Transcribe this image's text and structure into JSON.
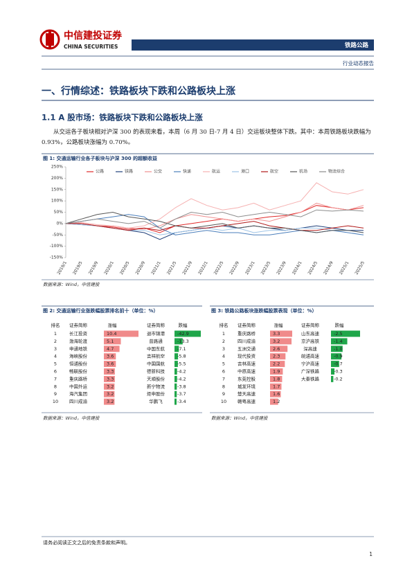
{
  "header": {
    "logo_cn": "中信建投证券",
    "logo_en": "CHINA SECURITIES",
    "tag": "铁路公路",
    "report_type": "行业动态报告"
  },
  "section_title": "一、行情综述：铁路板块下跌和公路板块上涨",
  "subsection_title": "1.1 A 股市场：铁路板块下跌和公路板块上涨",
  "paragraph": "从交运各子板块相对沪深 300 的表现来看，本周（6 月 30 日-7 月 4 日）交运板块整体下跌。其中：本周铁路板块跌幅为 0.93%，公路板块涨幅为 0.70%。",
  "figure1": {
    "title": "图 1: 交通运输行业各子板块与沪深 300 的超额收益",
    "source": "数据来源：Wind，中信建投"
  },
  "chart_data": {
    "type": "line",
    "grid": false,
    "x": [
      "2019/1",
      "2019/5",
      "2019/9",
      "2020/1",
      "2020/5",
      "2020/9",
      "2021/1",
      "2021/5",
      "2021/9",
      "2022/1",
      "2022/5",
      "2022/9",
      "2023/1",
      "2023/5",
      "2023/9",
      "2024/1",
      "2024/5",
      "2024/9",
      "2025/1",
      "2025/5"
    ],
    "ylim": [
      -150,
      250
    ],
    "yticks": [
      {
        "value": 250,
        "label": "250%"
      },
      {
        "value": 200,
        "label": "200%"
      },
      {
        "value": 150,
        "label": "150%"
      },
      {
        "value": 100,
        "label": "100%"
      },
      {
        "value": 50,
        "label": "50%"
      },
      {
        "value": 0,
        "label": "0%"
      },
      {
        "value": -50,
        "label": "-50%"
      },
      {
        "value": -100,
        "label": "-100%"
      },
      {
        "value": -150,
        "label": "-150%"
      }
    ],
    "series": [
      {
        "name": "公路",
        "color": "#e02828",
        "values": [
          0,
          0,
          -10,
          -15,
          -25,
          -20,
          -40,
          -10,
          0,
          10,
          20,
          10,
          20,
          30,
          35,
          50,
          80,
          70,
          60,
          70
        ]
      },
      {
        "name": "铁路",
        "color": "#1f3f7a",
        "values": [
          0,
          -5,
          -10,
          -20,
          -30,
          -40,
          -70,
          -40,
          -30,
          -20,
          -10,
          -20,
          -10,
          -20,
          -30,
          -20,
          -10,
          -20,
          -30,
          -30
        ]
      },
      {
        "name": "公交",
        "color": "#f08f8f",
        "values": [
          0,
          0,
          -10,
          -10,
          -20,
          -25,
          -10,
          20,
          40,
          30,
          20,
          10,
          20,
          10,
          30,
          50,
          90,
          70,
          60,
          80
        ]
      },
      {
        "name": "快递",
        "color": "#4a7ebb",
        "values": [
          0,
          10,
          20,
          30,
          40,
          30,
          -20,
          -50,
          -40,
          -30,
          -40,
          -40,
          -50,
          -50,
          -40,
          -30,
          -40,
          -30,
          -40,
          -50
        ]
      },
      {
        "name": "航运",
        "color": "#f6b0b0",
        "values": [
          0,
          5,
          -5,
          -10,
          -20,
          -10,
          20,
          70,
          110,
          80,
          60,
          70,
          90,
          60,
          80,
          100,
          180,
          140,
          130,
          150
        ]
      },
      {
        "name": "港口",
        "color": "#9dc3e6",
        "values": [
          0,
          -5,
          -10,
          -20,
          -30,
          -30,
          -50,
          -40,
          -30,
          -20,
          -30,
          -20,
          -40,
          -30,
          -30,
          -20,
          -20,
          -30,
          -30,
          -40
        ]
      },
      {
        "name": "航空",
        "color": "#b01818",
        "values": [
          0,
          0,
          -10,
          -20,
          -30,
          -20,
          -30,
          -10,
          -20,
          -20,
          -10,
          0,
          10,
          -10,
          -20,
          -30,
          -30,
          -20,
          -10,
          -20
        ]
      },
      {
        "name": "机场",
        "color": "#555555",
        "values": [
          0,
          20,
          40,
          50,
          30,
          20,
          10,
          -10,
          -20,
          -10,
          0,
          -20,
          -10,
          -20,
          -20,
          -30,
          -40,
          -30,
          -30,
          -40
        ]
      },
      {
        "name": "物流综合",
        "color": "#8c8c8c",
        "values": [
          0,
          10,
          20,
          10,
          0,
          10,
          -20,
          20,
          50,
          40,
          50,
          30,
          40,
          50,
          40,
          30,
          60,
          55,
          60,
          55
        ]
      }
    ]
  },
  "table2": {
    "title": "图 2: 交通运输行业涨跌幅股票排名前十（单位：%）",
    "header": [
      "排名",
      "证券简称",
      "涨幅",
      "证券简称",
      "跌幅"
    ],
    "rows": [
      [
        1,
        "长江投资",
        10.4,
        "退市锦港",
        -42.9
      ],
      [
        2,
        "渤海轮渡",
        5.1,
        "普路通",
        -13.3
      ],
      [
        3,
        "申通地铁",
        4.7,
        "中国东航",
        -7.1
      ],
      [
        4,
        "海峡股份",
        3.6,
        "吉祥航空",
        -5.8
      ],
      [
        5,
        "恒通股份",
        3.6,
        "中国国航",
        -5.5
      ],
      [
        6,
        "畅联股份",
        3.3,
        "德新科技",
        -4.2
      ],
      [
        7,
        "重庆路桥",
        3.3,
        "天顺股份",
        -4.2
      ],
      [
        8,
        "中国外运",
        3.2,
        "新宁物流",
        -3.8
      ],
      [
        9,
        "海汽集团",
        3.2,
        "炬申股份",
        -3.7
      ],
      [
        10,
        "四川成渝",
        3.2,
        "华鹏飞",
        -3.4
      ]
    ],
    "source": "数据来源：Wind，中信建投"
  },
  "table3": {
    "title": "图 3: 铁路公路板块涨跌幅股票表现（单位：%）",
    "header": [
      "排名",
      "证券简称",
      "涨幅",
      "证券简称",
      "跌幅"
    ],
    "rows": [
      [
        1,
        "重庆路桥",
        3.3,
        "山东高速",
        -2.5
      ],
      [
        2,
        "四川成渝",
        3.2,
        "京沪高铁",
        -1.4
      ],
      [
        3,
        "五洲交通",
        2.6,
        "深高速",
        {
          "value": -1,
          "label": "-1.0"
        }
      ],
      [
        4,
        "现代投资",
        2.3,
        "皖通高速",
        -0.9
      ],
      [
        5,
        "吉林高速",
        2.2,
        "宁沪高速",
        -0.7
      ],
      [
        6,
        "中原高速",
        1.9,
        "广深铁路",
        -0.3
      ],
      [
        7,
        "东莞控股",
        1.8,
        "大秦铁路",
        -0.2
      ],
      [
        8,
        "城发环境",
        1.7,
        null,
        null
      ],
      [
        9,
        "楚天高速",
        1.6,
        null,
        null
      ],
      [
        10,
        "赣粤高速",
        1.2,
        null,
        null
      ]
    ],
    "source": "数据来源：Wind，中信建投"
  },
  "footer": {
    "disclaimer": "请务必阅读正文之后的免责条款和声明。",
    "page": "1"
  }
}
